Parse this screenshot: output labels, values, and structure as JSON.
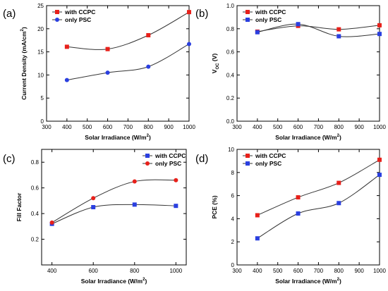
{
  "chart_data": [
    {
      "panel_label": "(a)",
      "type": "scatter",
      "xlabel": "Solar Irradiance (W/m",
      "xlabel_sup": "2",
      "xlabel_end": ")",
      "ylabel": "Current Density (mA/cm",
      "ylabel_sup": "2",
      "ylabel_end": ")",
      "xlim": [
        300,
        1000
      ],
      "ylim": [
        0,
        25
      ],
      "xticks": [
        300,
        400,
        500,
        600,
        700,
        800,
        900,
        1000
      ],
      "yticks": [
        0,
        5,
        10,
        15,
        20,
        25
      ],
      "ytick_labels": [
        "0",
        "5",
        "10",
        "15",
        "20",
        "25"
      ],
      "legend": "top-left",
      "series": [
        {
          "name": "with CCPC",
          "marker": "square",
          "color": "#e8201a",
          "x": [
            400,
            600,
            800,
            1000
          ],
          "y": [
            16.1,
            15.6,
            18.6,
            23.6
          ]
        },
        {
          "name": "only PSC",
          "marker": "circle",
          "color": "#2a3fe0",
          "x": [
            400,
            600,
            800,
            1000
          ],
          "y": [
            8.9,
            10.5,
            11.8,
            16.7
          ]
        }
      ]
    },
    {
      "panel_label": "(b)",
      "type": "scatter",
      "xlabel": "Solar Irradiance (W/m",
      "xlabel_sup": "2",
      "xlabel_end": ")",
      "ylabel": "V",
      "ylabel_sub": "OC",
      "ylabel_end": " (V)",
      "xlim": [
        300,
        1000
      ],
      "ylim": [
        0,
        1.0
      ],
      "xticks": [
        300,
        400,
        500,
        600,
        700,
        800,
        900,
        1000
      ],
      "yticks": [
        0,
        0.2,
        0.4,
        0.6,
        0.8,
        1.0
      ],
      "ytick_labels": [
        "0.0",
        "0.2",
        "0.4",
        "0.6",
        "0.8",
        "1.0"
      ],
      "legend": "top-left",
      "series": [
        {
          "name": "with CCPC",
          "marker": "square",
          "color": "#e8201a",
          "x": [
            400,
            600,
            800,
            1000
          ],
          "y": [
            0.775,
            0.825,
            0.795,
            0.83
          ]
        },
        {
          "name": "only PSC",
          "marker": "square",
          "color": "#2a3fe0",
          "x": [
            400,
            600,
            800,
            1000
          ],
          "y": [
            0.77,
            0.84,
            0.735,
            0.755
          ]
        }
      ]
    },
    {
      "panel_label": "(c)",
      "type": "scatter",
      "xlabel": "Solar Irradiance (W/m",
      "xlabel_sup": "2",
      "xlabel_end": ")",
      "ylabel": "Fill Factor",
      "xlim": [
        350,
        1050
      ],
      "ylim": [
        0.0,
        0.9
      ],
      "xticks": [
        400,
        600,
        800,
        1000
      ],
      "yticks": [
        0.2,
        0.4,
        0.6,
        0.8
      ],
      "ytick_labels": [
        "0.2",
        "0.4",
        "0.6",
        "0.8"
      ],
      "legend": "top-right",
      "series": [
        {
          "name": "with CCPC",
          "marker": "square",
          "color": "#2a3fe0",
          "x": [
            400,
            600,
            800,
            1000
          ],
          "y": [
            0.32,
            0.45,
            0.47,
            0.46
          ]
        },
        {
          "name": "only PSC",
          "marker": "circle",
          "color": "#e8201a",
          "x": [
            400,
            600,
            800,
            1000
          ],
          "y": [
            0.33,
            0.52,
            0.65,
            0.66
          ]
        }
      ]
    },
    {
      "panel_label": "(d)",
      "type": "scatter",
      "xlabel": "Solar Irradiance (W/m",
      "xlabel_sup": "2",
      "xlabel_end": ")",
      "ylabel": "PCE (%)",
      "xlim": [
        300,
        1000
      ],
      "ylim": [
        0,
        10
      ],
      "xticks": [
        300,
        400,
        500,
        600,
        700,
        800,
        900,
        1000
      ],
      "yticks": [
        0,
        2,
        4,
        6,
        8,
        10
      ],
      "ytick_labels": [
        "0",
        "2",
        "4",
        "6",
        "8",
        "10"
      ],
      "legend": "top-left",
      "series": [
        {
          "name": "with CCPC",
          "marker": "square",
          "color": "#e8201a",
          "x": [
            400,
            600,
            800,
            1000
          ],
          "y": [
            4.3,
            5.85,
            7.1,
            9.1
          ]
        },
        {
          "name": "only PSC",
          "marker": "square",
          "color": "#2a3fe0",
          "x": [
            400,
            600,
            800,
            1000
          ],
          "y": [
            2.3,
            4.45,
            5.35,
            7.8
          ]
        }
      ]
    }
  ]
}
